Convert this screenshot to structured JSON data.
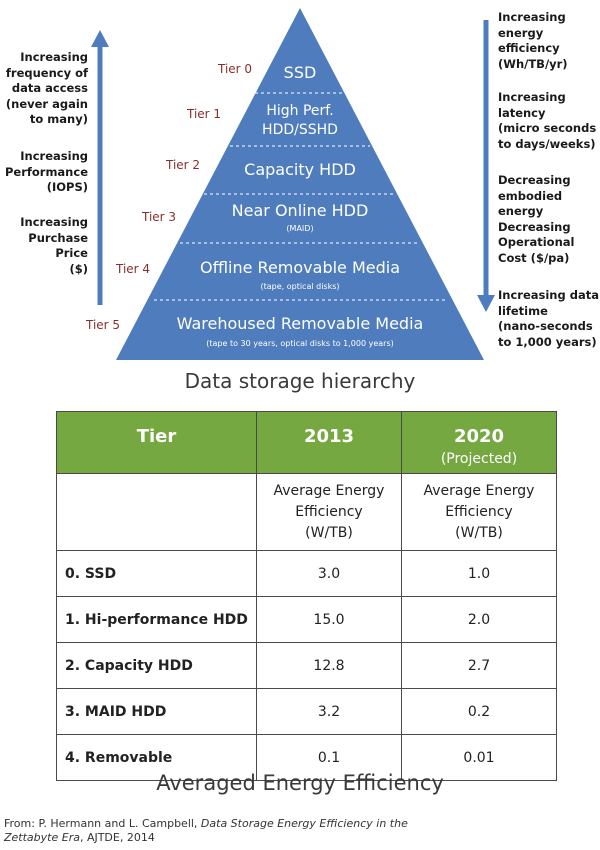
{
  "pyramid": {
    "tiers": [
      {
        "tier": "Tier 0",
        "lines": [
          "SSD"
        ],
        "sub": ""
      },
      {
        "tier": "Tier 1",
        "lines": [
          "High Perf.",
          "HDD/SSHD"
        ],
        "sub": ""
      },
      {
        "tier": "Tier 2",
        "lines": [
          "Capacity HDD"
        ],
        "sub": ""
      },
      {
        "tier": "Tier 3",
        "lines": [
          "Near Online HDD"
        ],
        "sub": "(MAID)"
      },
      {
        "tier": "Tier 4",
        "lines": [
          "Offline Removable Media"
        ],
        "sub": "(tape, optical disks)"
      },
      {
        "tier": "Tier 5",
        "lines": [
          "Warehoused Removable Media"
        ],
        "sub": "(tape to 30 years, optical disks to 1,000 years)"
      }
    ],
    "left_notes": [
      [
        "Increasing",
        "frequency of",
        "data access",
        "(never again",
        "to many)"
      ],
      [
        "Increasing",
        "Performance",
        "(IOPS)"
      ],
      [
        "Increasing",
        "Purchase Price",
        "($)"
      ]
    ],
    "right_notes": [
      [
        "Increasing",
        "energy",
        "efficiency",
        "(Wh/TB/yr)"
      ],
      [
        "Increasing",
        "latency",
        "(micro seconds",
        "to days/weeks)"
      ],
      [
        "Decreasing",
        "embodied",
        "energy",
        "Decreasing",
        "Operational",
        "Cost ($/pa)"
      ],
      [
        "Increasing data",
        "lifetime",
        "(nano-seconds",
        "to 1,000 years)"
      ]
    ],
    "caption": "Data storage hierarchy",
    "colors": {
      "fill": "#4f7cbd",
      "arrow": "#4f7cbd",
      "tier_label": "#8b2d2d"
    }
  },
  "table": {
    "headers": {
      "tier": "Tier",
      "y2013": "2013",
      "y2020": "2020",
      "y2020_note": "(Projected)"
    },
    "unit_2013": [
      "Average Energy",
      "Efficiency",
      "(W/TB)"
    ],
    "unit_2020": [
      "Average Energy",
      "Efficiency",
      "(W/TB)"
    ],
    "rows": [
      {
        "tier": "0. SSD",
        "v2013": "3.0",
        "v2020": "1.0"
      },
      {
        "tier": "1. Hi-performance HDD",
        "v2013": "15.0",
        "v2020": "2.0"
      },
      {
        "tier": "2. Capacity HDD",
        "v2013": "12.8",
        "v2020": "2.7"
      },
      {
        "tier": "3. MAID HDD",
        "v2013": "3.2",
        "v2020": "0.2"
      },
      {
        "tier": "4. Removable",
        "v2013": "0.1",
        "v2020": "0.01"
      }
    ],
    "caption": "Averaged Energy Efficiency",
    "header_color": "#76a841"
  },
  "citation": {
    "prefix": "From: P. Hermann and L. Campbell, ",
    "title": "Data Storage Energy Efficiency in the Zettabyte Era",
    "suffix": ", AJTDE, 2014"
  }
}
